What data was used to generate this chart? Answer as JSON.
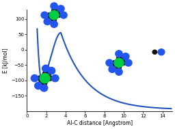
{
  "title": "",
  "xlabel": "Al-C distance [Angstrom]",
  "ylabel": "E [kJ/mol]",
  "xlim": [
    0,
    15
  ],
  "ylim": [
    -200,
    130
  ],
  "xticks": [
    0,
    2,
    4,
    6,
    8,
    10,
    12,
    14
  ],
  "yticks": [
    -150,
    -100,
    -50,
    0,
    50,
    100
  ],
  "curve_color": "#2255bb",
  "curve_linewidth": 1.5,
  "background_color": "#ffffff",
  "figsize": [
    2.56,
    1.89
  ],
  "dpi": 100,
  "al_color": "#00cc44",
  "c_color": "#111111",
  "n_color": "#2255ee"
}
